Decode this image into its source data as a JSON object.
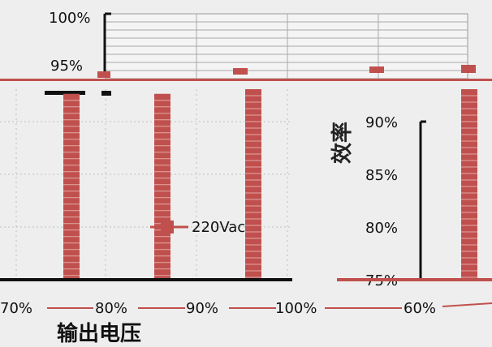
{
  "chart_data": {
    "type": "bar",
    "xlabel": "输出电压",
    "ylabel": "效率",
    "x_ticks": [
      "70%",
      "80%",
      "90%",
      "100%",
      "60%"
    ],
    "y_ticks_top": [
      "100%",
      "95%"
    ],
    "y_ticks_right": [
      "90%",
      "85%",
      "80%",
      "75%"
    ],
    "series": [
      {
        "name": "220Vac",
        "color": "#c0504d"
      }
    ],
    "categories": [
      "70%",
      "80%",
      "90%",
      "100%",
      "60%"
    ],
    "values": [
      94,
      94,
      94.5,
      94.5,
      94.8
    ],
    "ylim": [
      75,
      100
    ],
    "grid": true,
    "legend_position": "center"
  }
}
